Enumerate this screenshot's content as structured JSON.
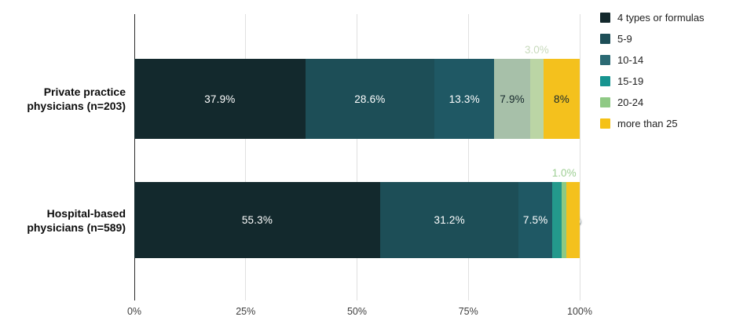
{
  "chart_data": {
    "type": "bar",
    "stacked": "percent",
    "orientation": "horizontal",
    "title": "",
    "xlabel": "",
    "ylabel": "",
    "x_axis": {
      "range": [
        0,
        100
      ],
      "ticks": [
        {
          "label": "0%",
          "value": 0
        },
        {
          "label": "25%",
          "value": 25
        },
        {
          "label": "50%",
          "value": 50
        },
        {
          "label": "75%",
          "value": 75
        },
        {
          "label": "100%",
          "value": 100
        }
      ],
      "grid": true
    },
    "categories": [
      "Private practice physicians (n=203)",
      "Hospital-based physicians (n=589)"
    ],
    "series": [
      {
        "name": "4 types or formulas",
        "values": [
          37.9,
          55.3
        ]
      },
      {
        "name": "5-9",
        "values": [
          28.6,
          31.2
        ]
      },
      {
        "name": "10-14",
        "values": [
          13.3,
          7.5
        ]
      },
      {
        "name": "15-19",
        "values": [
          7.9,
          2.2
        ]
      },
      {
        "name": "20-24",
        "values": [
          3.0,
          1.0
        ]
      },
      {
        "name": "more than 25",
        "values": [
          8,
          3
        ]
      }
    ],
    "legend": {
      "position": "right",
      "entries": [
        {
          "label": "4 types or formulas",
          "color": "#13292d"
        },
        {
          "label": "5-9",
          "color": "#1d4e57"
        },
        {
          "label": "10-14",
          "color": "#2b6a74"
        },
        {
          "label": "15-19",
          "color": "#179490"
        },
        {
          "label": "20-24",
          "color": "#8fc985"
        },
        {
          "label": "more than 25",
          "color": "#f5c116"
        }
      ]
    },
    "bars": [
      {
        "category_lines": [
          "Private practice",
          "physicians (n=203)"
        ],
        "segments": [
          {
            "series": "4 types or formulas",
            "value": 37.9,
            "label": "37.9%",
            "color": "#13292d",
            "label_color": "#ffffff",
            "placement": "center",
            "shadow": false
          },
          {
            "series": "5-9",
            "value": 28.6,
            "label": "28.6%",
            "color": "#1d4e57",
            "label_color": "#ffffff",
            "placement": "center",
            "shadow": false
          },
          {
            "series": "10-14",
            "value": 13.3,
            "label": "13.3%",
            "color": "#1f5864",
            "label_color": "#ffffff",
            "placement": "center",
            "shadow": false
          },
          {
            "series": "15-19",
            "value": 7.9,
            "label": "7.9%",
            "color": "#a7c0a9",
            "label_color": "#16282c",
            "placement": "center",
            "shadow": false
          },
          {
            "series": "20-24",
            "value": 3.0,
            "label": "3.0%",
            "color": "#bbd5a5",
            "label_color": "#c8dabd",
            "placement": "above",
            "shadow": false
          },
          {
            "series": "more than 25",
            "value": 8,
            "label": "8%",
            "color": "#f4c11d",
            "label_color": "#16282c",
            "placement": "center",
            "shadow": false
          }
        ]
      },
      {
        "category_lines": [
          "Hospital-based",
          "physicians (n=589)"
        ],
        "segments": [
          {
            "series": "4 types or formulas",
            "value": 55.3,
            "label": "55.3%",
            "color": "#13292d",
            "label_color": "#ffffff",
            "placement": "center",
            "shadow": false
          },
          {
            "series": "5-9",
            "value": 31.2,
            "label": "31.2%",
            "color": "#1d4e57",
            "label_color": "#ffffff",
            "placement": "center",
            "shadow": false
          },
          {
            "series": "10-14",
            "value": 7.5,
            "label": "7.5%",
            "color": "#1f5864",
            "label_color": "#ffffff",
            "placement": "center",
            "shadow": false
          },
          {
            "series": "15-19",
            "value": 2.2,
            "label": "2.2%",
            "color": "#23998c",
            "label_color": "#ffffff",
            "placement": "inside-top",
            "shadow": true
          },
          {
            "series": "20-24",
            "value": 1.0,
            "label": "1.0%",
            "color": "#8cc985",
            "label_color": "#9ecf94",
            "placement": "above",
            "shadow": false
          },
          {
            "series": "more than 25",
            "value": 3,
            "label": "3%",
            "color": "#f4c11d",
            "label_color": "#ffffff",
            "placement": "float-center",
            "shadow": true
          }
        ]
      }
    ]
  }
}
